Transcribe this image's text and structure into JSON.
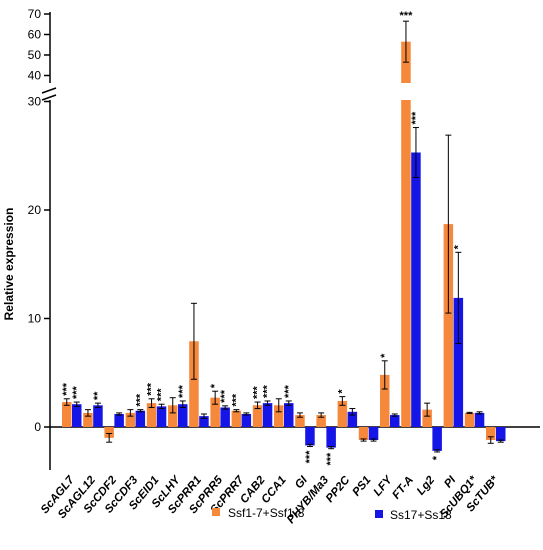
{
  "chart_data": {
    "type": "bar",
    "ylabel": "Relative expression",
    "colors": {
      "series1": "#F5883A",
      "series2": "#1515E8"
    },
    "axis_break": {
      "lower_range": [
        -4,
        30
      ],
      "upper_range": [
        35,
        70
      ]
    },
    "lower_ticks": [
      "0",
      "10",
      "20",
      "30"
    ],
    "upper_ticks": [
      "40",
      "50",
      "60",
      "70"
    ],
    "categories": [
      "ScAGL7",
      "ScAGL12",
      "ScCDF2",
      "ScCDF3",
      "ScEID1",
      "ScLHY",
      "ScPRR1",
      "ScPRR5",
      "ScPRR7",
      "CAB2",
      "CCA1",
      "GI",
      "PHYB/Ma3",
      "PP2C",
      "PS1",
      "LFY",
      "FT-A",
      "Lg2",
      "PI",
      "ScUBQ1*",
      "ScTUB*"
    ],
    "series": [
      {
        "name": "Ssf1-7+Ssf1-8",
        "values": [
          2.3,
          1.3,
          -1.0,
          1.3,
          2.2,
          2.0,
          7.9,
          2.7,
          1.5,
          2.0,
          2.0,
          1.1,
          1.1,
          2.4,
          -1.2,
          4.8,
          56.5,
          1.6,
          18.7,
          1.3,
          -1.2
        ],
        "errors": [
          0.3,
          0.3,
          0.4,
          0.3,
          0.4,
          0.7,
          3.5,
          0.6,
          0.1,
          0.3,
          0.6,
          0.2,
          0.2,
          0.4,
          0.1,
          1.3,
          10.0,
          0.6,
          8.2,
          0.05,
          0.3
        ],
        "sig": [
          "***",
          "",
          "",
          "",
          "***",
          "",
          "",
          "*",
          "***",
          "***",
          "",
          "",
          "",
          "*",
          "",
          "*",
          "***",
          "",
          "",
          "",
          ""
        ]
      },
      {
        "name": "Ss17+Ss18",
        "values": [
          2.1,
          2.0,
          1.2,
          1.5,
          1.9,
          2.1,
          1.0,
          1.8,
          1.2,
          2.2,
          2.2,
          -1.7,
          -1.9,
          1.4,
          -1.2,
          1.1,
          25.3,
          -2.2,
          11.9,
          1.3,
          -1.3
        ],
        "errors": [
          0.2,
          0.2,
          0.1,
          0.1,
          0.2,
          0.3,
          0.2,
          0.15,
          0.1,
          0.2,
          0.2,
          0.1,
          0.1,
          0.3,
          0.1,
          0.1,
          2.3,
          0.1,
          4.2,
          0.1,
          0.1
        ],
        "sig": [
          "***",
          "**",
          "",
          "***",
          "***",
          "***",
          "",
          "***",
          "",
          "***",
          "***",
          "***",
          "***",
          "",
          "",
          "",
          "***",
          "*",
          "*",
          "",
          ""
        ]
      }
    ]
  }
}
